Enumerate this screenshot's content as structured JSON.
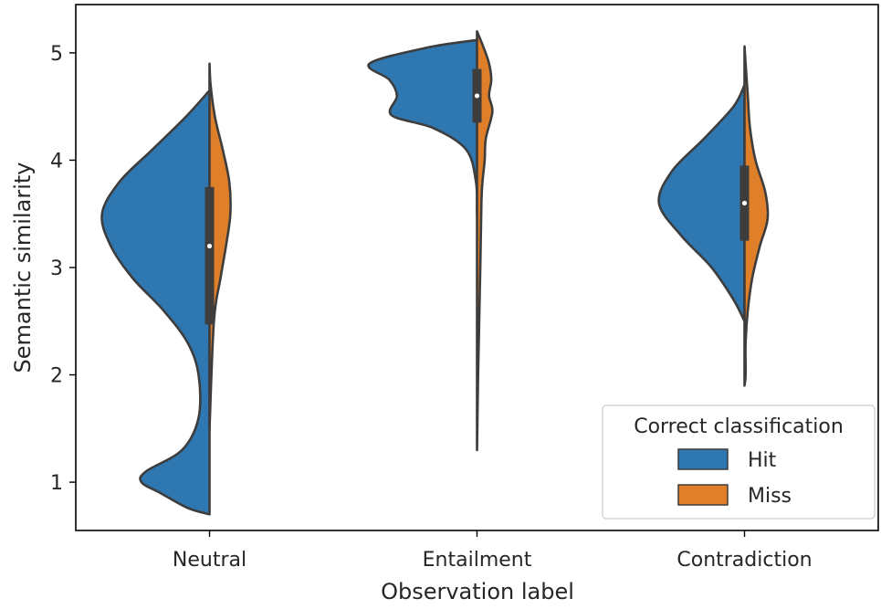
{
  "chart_data": {
    "type": "violin",
    "split": true,
    "xlabel": "Observation label",
    "ylabel": "Semantic similarity",
    "categories": [
      "Neutral",
      "Entailment",
      "Contradiction"
    ],
    "ylim": [
      0.55,
      5.45
    ],
    "yticks": [
      1,
      2,
      3,
      4,
      5
    ],
    "legend": {
      "title": "Correct classification",
      "placement": "lower right",
      "entries": [
        {
          "label": "Hit",
          "color": "#2e77b1"
        },
        {
          "label": "Miss",
          "color": "#e07f2a"
        }
      ]
    },
    "colors": {
      "Hit": "#2e77b1",
      "Miss": "#e07f2a",
      "outline": "#3d3d3d",
      "box": "#3d3d3d"
    },
    "violins": [
      {
        "category": "Neutral",
        "hit_profile": [
          [
            0.7,
            0.0
          ],
          [
            0.76,
            0.2
          ],
          [
            0.9,
            0.45
          ],
          [
            1.0,
            0.62
          ],
          [
            1.1,
            0.58
          ],
          [
            1.3,
            0.25
          ],
          [
            1.6,
            0.1
          ],
          [
            2.0,
            0.1
          ],
          [
            2.3,
            0.2
          ],
          [
            2.6,
            0.42
          ],
          [
            2.9,
            0.7
          ],
          [
            3.2,
            0.9
          ],
          [
            3.5,
            0.98
          ],
          [
            3.8,
            0.82
          ],
          [
            4.1,
            0.52
          ],
          [
            4.4,
            0.22
          ],
          [
            4.65,
            0.0
          ]
        ],
        "miss_profile": [
          [
            1.5,
            0.0
          ],
          [
            2.5,
            0.04
          ],
          [
            2.9,
            0.1
          ],
          [
            3.2,
            0.15
          ],
          [
            3.5,
            0.19
          ],
          [
            3.8,
            0.18
          ],
          [
            4.1,
            0.12
          ],
          [
            4.4,
            0.05
          ],
          [
            4.7,
            0.01
          ],
          [
            4.9,
            0.0
          ]
        ],
        "box": {
          "q1": 2.47,
          "median": 3.2,
          "q3": 3.75
        }
      },
      {
        "category": "Entailment",
        "hit_profile": [
          [
            3.5,
            0.0
          ],
          [
            3.8,
            0.01
          ],
          [
            4.1,
            0.1
          ],
          [
            4.3,
            0.4
          ],
          [
            4.42,
            0.78
          ],
          [
            4.6,
            0.73
          ],
          [
            4.75,
            0.8
          ],
          [
            4.9,
            0.98
          ],
          [
            5.05,
            0.45
          ],
          [
            5.12,
            0.0
          ]
        ],
        "miss_profile": [
          [
            1.3,
            0.0
          ],
          [
            2.0,
            0.01
          ],
          [
            3.0,
            0.03
          ],
          [
            3.6,
            0.04
          ],
          [
            3.8,
            0.05
          ],
          [
            4.0,
            0.07
          ],
          [
            4.2,
            0.08
          ],
          [
            4.45,
            0.14
          ],
          [
            4.6,
            0.11
          ],
          [
            4.75,
            0.13
          ],
          [
            4.9,
            0.11
          ],
          [
            5.05,
            0.06
          ],
          [
            5.2,
            0.0
          ]
        ],
        "box": {
          "q1": 4.35,
          "median": 4.6,
          "q3": 4.85
        }
      },
      {
        "category": "Contradiction",
        "hit_profile": [
          [
            4.7,
            0.0
          ],
          [
            4.5,
            0.1
          ],
          [
            4.2,
            0.37
          ],
          [
            3.9,
            0.66
          ],
          [
            3.6,
            0.78
          ],
          [
            3.3,
            0.58
          ],
          [
            3.0,
            0.3
          ],
          [
            2.7,
            0.1
          ],
          [
            2.5,
            0.0
          ]
        ],
        "miss_profile": [
          [
            5.06,
            0.0
          ],
          [
            4.9,
            0.01
          ],
          [
            4.6,
            0.03
          ],
          [
            4.3,
            0.05
          ],
          [
            4.0,
            0.1
          ],
          [
            3.7,
            0.19
          ],
          [
            3.45,
            0.21
          ],
          [
            3.2,
            0.14
          ],
          [
            2.9,
            0.07
          ],
          [
            2.6,
            0.03
          ],
          [
            2.3,
            0.01
          ],
          [
            2.0,
            0.01
          ],
          [
            1.9,
            0.0
          ]
        ],
        "box": {
          "q1": 3.25,
          "median": 3.6,
          "q3": 3.95
        }
      }
    ]
  }
}
